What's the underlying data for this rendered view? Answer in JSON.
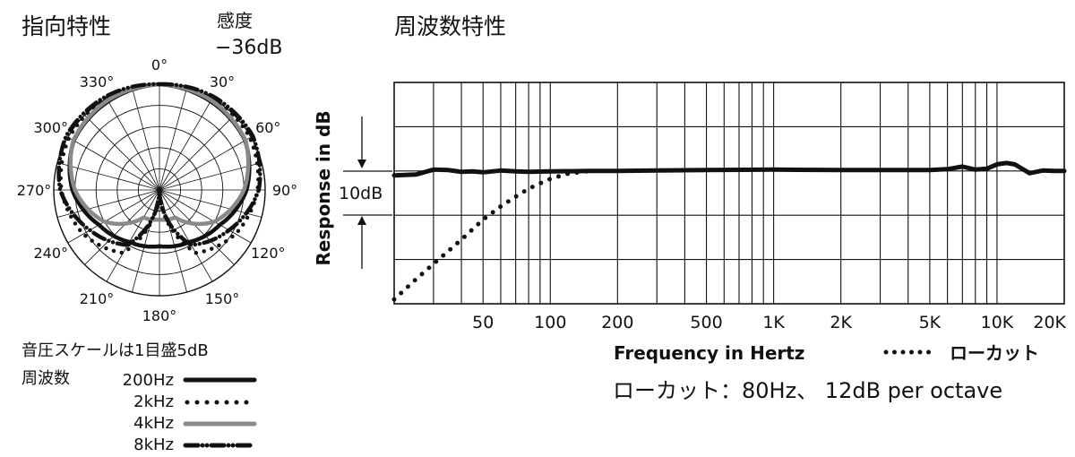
{
  "polar": {
    "title": "指向特性",
    "sensitivity_label": "感度",
    "sensitivity_value": "−36dB",
    "scale_note": "音圧スケールは1目盛5dB",
    "legend_title": "周波数",
    "legend": [
      {
        "name": "200Hz",
        "style": "solid",
        "color": "#111111"
      },
      {
        "name": "2kHz",
        "style": "dotted",
        "color": "#111111"
      },
      {
        "name": "4kHz",
        "style": "solid",
        "color": "#8a8a8a"
      },
      {
        "name": "8kHz",
        "style": "dashdot",
        "color": "#111111"
      }
    ]
  },
  "chart_data": [
    {
      "type": "polar",
      "angle_labels": [
        "0°",
        "30°",
        "60°",
        "90°",
        "120°",
        "150°",
        "180°",
        "210°",
        "240°",
        "270°",
        "300°",
        "330°"
      ],
      "angles": [
        0,
        30,
        60,
        90,
        120,
        150,
        180,
        210,
        240,
        270,
        300,
        330
      ],
      "scale_db_per_ring": 5,
      "rings": 5,
      "series": [
        {
          "name": "200Hz",
          "angles": [
            0,
            30,
            60,
            90,
            120,
            150,
            180
          ],
          "db": [
            0,
            -0.8,
            -1.6,
            -4.4,
            -8.5,
            -10.8,
            -11.7
          ]
        },
        {
          "name": "2kHz",
          "angles": [
            0,
            30,
            60,
            90,
            120,
            150,
            180
          ],
          "db": [
            0,
            0,
            -0.3,
            -1.8,
            -4.2,
            -7.8,
            -25.5
          ]
        },
        {
          "name": "4kHz",
          "angles": [
            0,
            30,
            60,
            90,
            120,
            150,
            180
          ],
          "db": [
            0,
            -0.5,
            -1.5,
            -5,
            -10,
            -17.5,
            -18
          ]
        },
        {
          "name": "8kHz",
          "angles": [
            0,
            30,
            60,
            90,
            120,
            150,
            180
          ],
          "db": [
            0,
            0.5,
            0.5,
            -1.5,
            -6,
            -10,
            -25
          ]
        }
      ]
    },
    {
      "type": "line",
      "title": "周波数特性",
      "xlabel": "Frequency in Hertz",
      "ylabel": "Response in dB",
      "x_scale": "log",
      "xlim": [
        20,
        20000
      ],
      "x_tick_labels": [
        "50",
        "100",
        "200",
        "500",
        "1K",
        "2K",
        "5K",
        "10K",
        "20K"
      ],
      "x_ticks": [
        50,
        100,
        200,
        500,
        1000,
        2000,
        5000,
        10000,
        20000
      ],
      "ylim": [
        -30,
        20
      ],
      "y_grid_step_db": 10,
      "scale_label": "10dB",
      "grid": true,
      "series": [
        {
          "name": "main",
          "style": "solid",
          "x": [
            20,
            25,
            30,
            35,
            40,
            45,
            50,
            60,
            70,
            80,
            100,
            150,
            200,
            300,
            500,
            1000,
            2000,
            3000,
            5000,
            6000,
            7000,
            8000,
            9000,
            10000,
            11000,
            12000,
            14000,
            16000,
            18000,
            20000
          ],
          "y": [
            -1,
            -0.8,
            0.3,
            0.2,
            -0.2,
            -0.1,
            -0.3,
            0.1,
            -0.1,
            -0.2,
            -0.1,
            0,
            0,
            0.1,
            0.2,
            0.3,
            0.2,
            0.2,
            0.2,
            0.4,
            1,
            0.3,
            0.5,
            1.5,
            1.8,
            1.5,
            -0.5,
            0.1,
            0,
            0
          ]
        },
        {
          "name": "ローカット",
          "style": "dotted",
          "x": [
            20,
            25,
            30,
            40,
            50,
            60,
            70,
            80,
            90,
            100,
            120,
            150
          ],
          "y": [
            -29,
            -24.5,
            -21,
            -15.5,
            -11,
            -8,
            -5.8,
            -4,
            -2.8,
            -1.8,
            -0.6,
            0
          ]
        }
      ],
      "legend": {
        "label": "ローカット",
        "style": "dotted",
        "placement": "bottom-right"
      },
      "annotation": "ローカット：80Hz、 12dB per octave"
    }
  ]
}
